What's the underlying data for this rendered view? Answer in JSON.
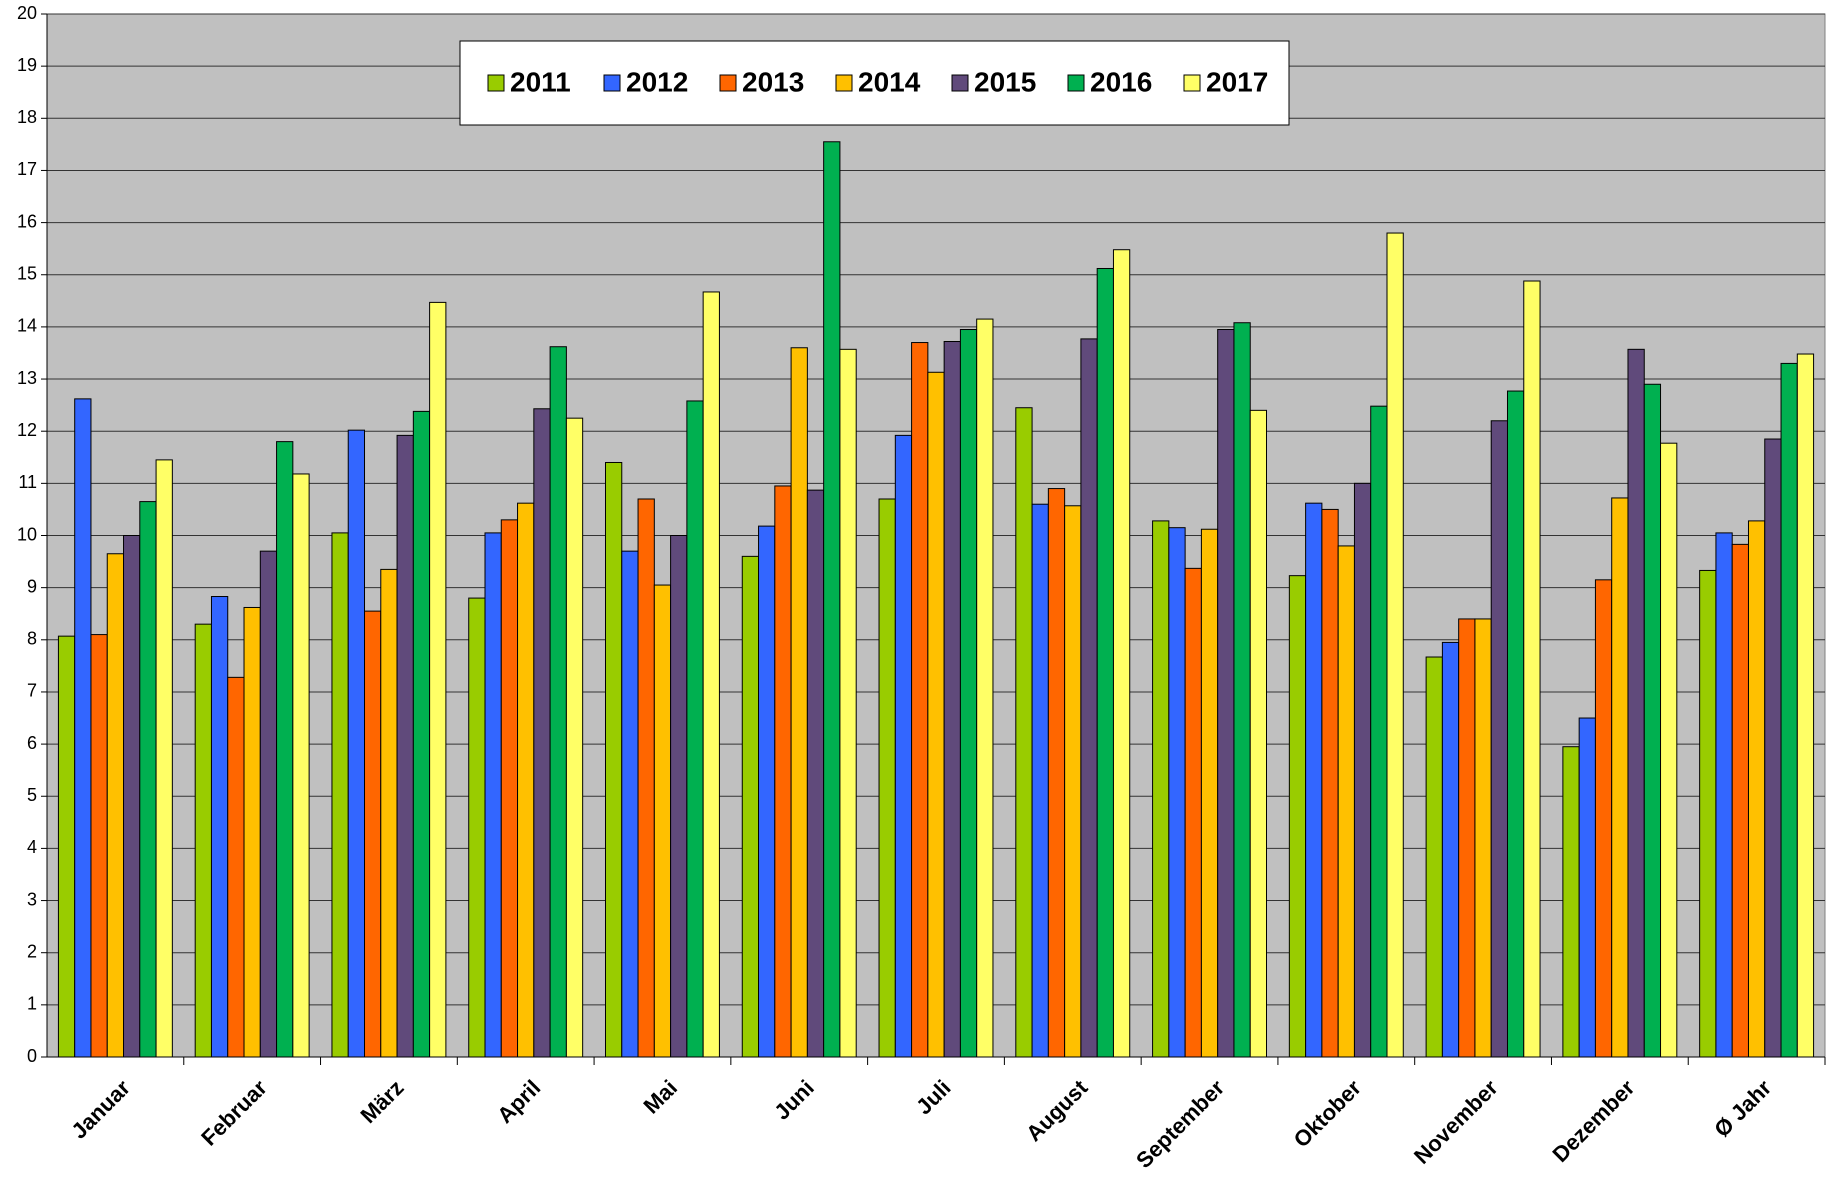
{
  "chart_data": {
    "type": "bar",
    "categories": [
      "Januar",
      "Februar",
      "März",
      "April",
      "Mai",
      "Juni",
      "Juli",
      "August",
      "September",
      "Oktober",
      "November",
      "Dezember",
      "Ø Jahr"
    ],
    "series": [
      {
        "name": "2011",
        "color": "#99cc00",
        "values": [
          8.07,
          8.3,
          10.05,
          8.8,
          11.4,
          9.6,
          10.7,
          12.45,
          10.28,
          9.23,
          7.67,
          5.95,
          9.33
        ]
      },
      {
        "name": "2012",
        "color": "#3366ff",
        "values": [
          12.62,
          8.83,
          12.02,
          10.05,
          9.7,
          10.18,
          11.92,
          10.6,
          10.15,
          10.62,
          7.95,
          6.5,
          10.05
        ]
      },
      {
        "name": "2013",
        "color": "#ff6600",
        "values": [
          8.1,
          7.28,
          8.55,
          10.3,
          10.7,
          10.95,
          13.7,
          10.9,
          9.37,
          10.5,
          8.4,
          9.15,
          9.83
        ]
      },
      {
        "name": "2014",
        "color": "#ffc000",
        "values": [
          9.65,
          8.62,
          9.35,
          10.62,
          9.05,
          13.6,
          13.13,
          10.57,
          10.12,
          9.8,
          8.4,
          10.72,
          10.28
        ]
      },
      {
        "name": "2015",
        "color": "#604a7b",
        "values": [
          10.0,
          9.7,
          11.92,
          12.43,
          10.0,
          10.87,
          13.72,
          13.77,
          13.95,
          11.0,
          12.2,
          13.57,
          11.85
        ]
      },
      {
        "name": "2016",
        "color": "#00b050",
        "values": [
          10.65,
          11.8,
          12.38,
          13.62,
          12.58,
          17.55,
          13.95,
          15.12,
          14.08,
          12.48,
          12.77,
          12.9,
          13.3
        ]
      },
      {
        "name": "2017",
        "color": "#ffff66",
        "values": [
          11.45,
          11.18,
          14.47,
          12.25,
          14.67,
          13.57,
          14.15,
          15.48,
          12.4,
          15.8,
          14.88,
          11.77,
          13.48
        ]
      }
    ],
    "ylim": [
      0,
      20
    ],
    "yticks": [
      0,
      1,
      2,
      3,
      4,
      5,
      6,
      7,
      8,
      9,
      10,
      11,
      12,
      13,
      14,
      15,
      16,
      17,
      18,
      19,
      20
    ],
    "grid": true,
    "legend": "top"
  }
}
